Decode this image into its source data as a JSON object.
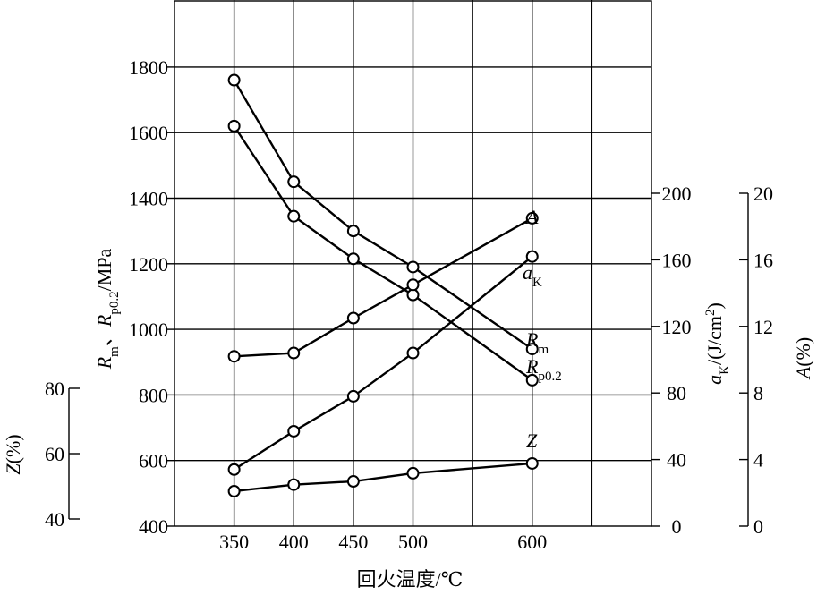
{
  "chart_data": {
    "type": "line",
    "xlabel": "回火温度/℃",
    "x_ticks": [
      "350",
      "400",
      "450",
      "500",
      "600"
    ],
    "x_tick_values": [
      350,
      400,
      450,
      500,
      600
    ],
    "xlim": [
      300,
      700
    ],
    "grid": true,
    "axes": {
      "strength": {
        "label_parts": [
          "R",
          "m",
          "、",
          "R",
          "p0.2",
          "/MPa"
        ],
        "ticks": [
          "400",
          "600",
          "800",
          "1000",
          "1200",
          "1400",
          "1600",
          "1800"
        ],
        "ylim": [
          400,
          1920
        ]
      },
      "z": {
        "label_parts": [
          "Z",
          "(%)"
        ],
        "ticks": [
          "40",
          "60",
          "80"
        ],
        "ylim": [
          40,
          80
        ]
      },
      "ak": {
        "label_parts": [
          "a",
          "K",
          "/(J/cm",
          "2",
          ")"
        ],
        "ticks": [
          "0",
          "40",
          "80",
          "120",
          "160",
          "200"
        ],
        "ylim": [
          0,
          200
        ]
      },
      "a": {
        "label_parts": [
          "A",
          "(%)"
        ],
        "ticks": [
          "0",
          "4",
          "8",
          "12",
          "16",
          "20"
        ],
        "ylim": [
          0,
          20
        ]
      }
    },
    "series": [
      {
        "name": "R",
        "name_sub": "m",
        "axis": "strength",
        "x": [
          350,
          400,
          450,
          500,
          600
        ],
        "y": [
          1760,
          1450,
          1300,
          1190,
          940
        ]
      },
      {
        "name": "R",
        "name_sub": "p0.2",
        "axis": "strength",
        "x": [
          350,
          400,
          450,
          500,
          600
        ],
        "y": [
          1620,
          1345,
          1215,
          1105,
          845
        ]
      },
      {
        "name": "A",
        "name_sub": "",
        "axis": "a",
        "x": [
          350,
          400,
          450,
          500,
          600
        ],
        "y": [
          10.2,
          10.4,
          12.5,
          14.5,
          18.5
        ]
      },
      {
        "name": "a",
        "name_sub": "K",
        "axis": "ak",
        "x": [
          350,
          400,
          450,
          500,
          600
        ],
        "y": [
          34,
          57,
          78,
          104,
          162
        ]
      },
      {
        "name": "Z",
        "name_sub": "",
        "axis": "z",
        "x": [
          350,
          400,
          450,
          500,
          600
        ],
        "y": [
          48.5,
          50.5,
          51.5,
          54,
          57
        ]
      }
    ]
  }
}
